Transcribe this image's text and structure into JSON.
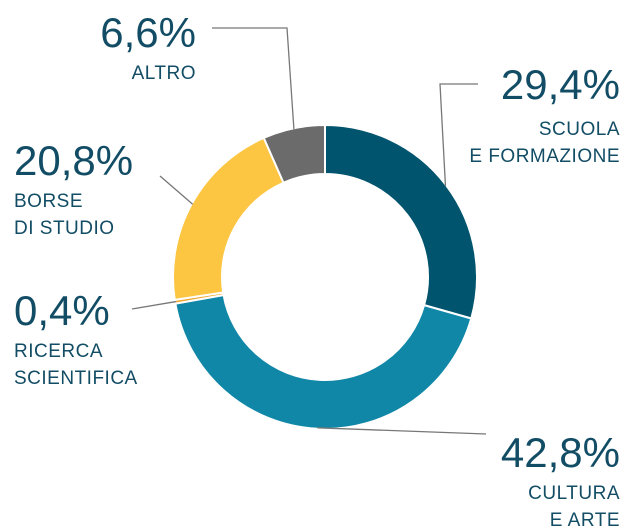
{
  "chart_data": {
    "type": "donut",
    "categories": [
      [
        "SCUOLA",
        "E FORMAZIONE"
      ],
      [
        "CULTURA",
        "E ARTE"
      ],
      [
        "RICERCA",
        "SCIENTIFICA"
      ],
      [
        "BORSE",
        "DI STUDIO"
      ],
      [
        "ALTRO"
      ]
    ],
    "values": [
      29.4,
      42.8,
      0.4,
      20.8,
      6.6
    ],
    "value_labels": [
      "29,4%",
      "42,8%",
      "0,4%",
      "20,8%",
      "6,6%"
    ],
    "colors": [
      "#00546e",
      "#1187a8",
      "#f0a830",
      "#fcc542",
      "#6b6b6b"
    ]
  }
}
